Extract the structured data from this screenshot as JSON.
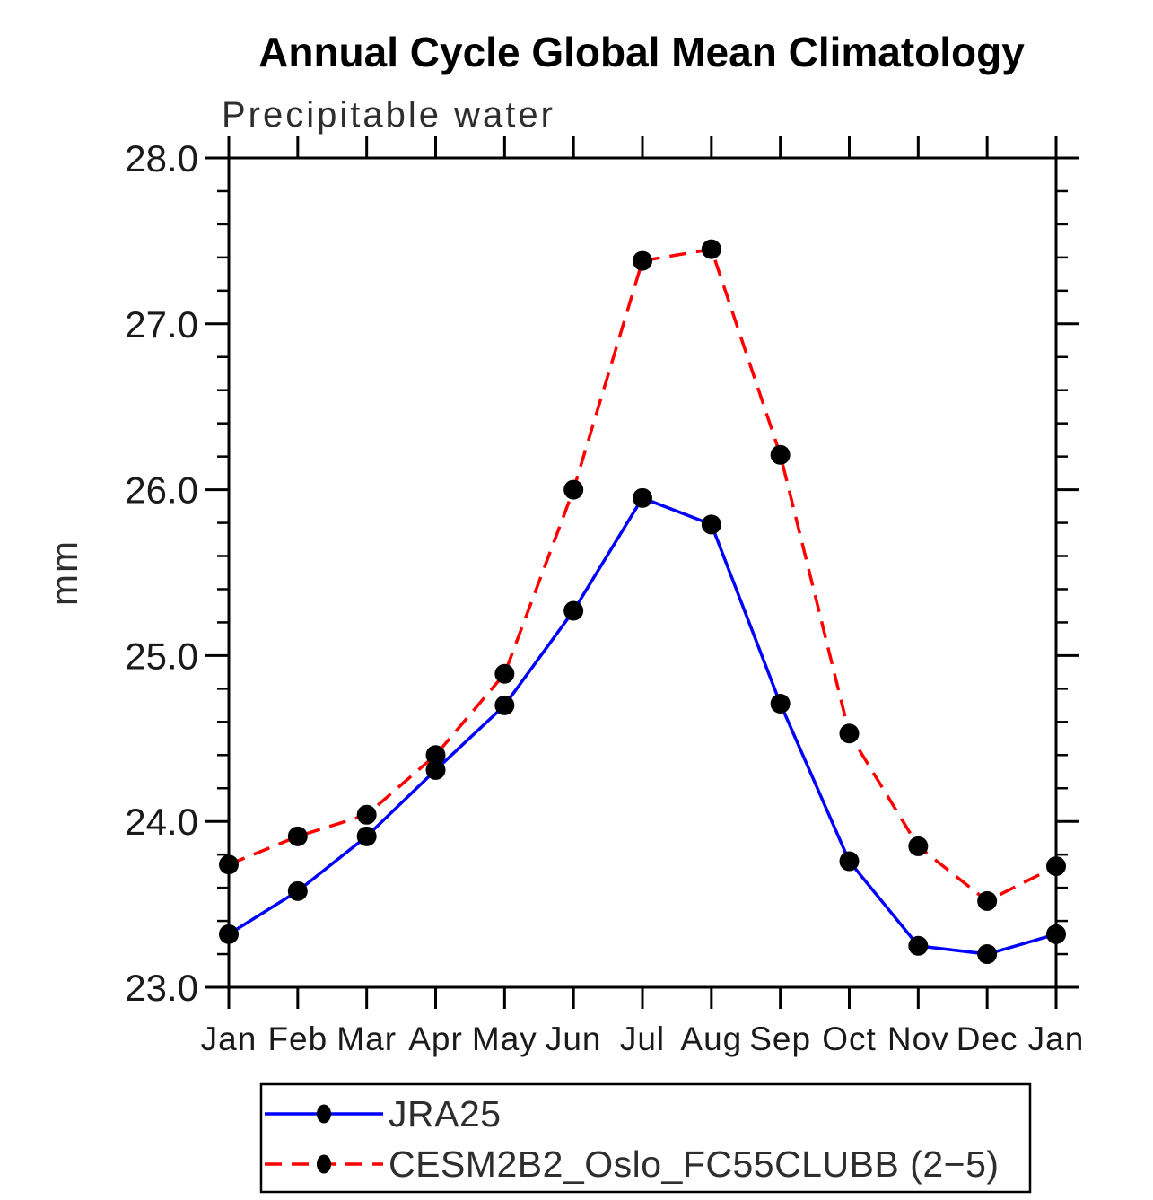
{
  "chart_data": {
    "type": "line",
    "title": "Annual Cycle Global Mean Climatology",
    "subtitle": "Precipitable water",
    "ylabel": "mm",
    "xlabel": "",
    "categories": [
      "Jan",
      "Feb",
      "Mar",
      "Apr",
      "May",
      "Jun",
      "Jul",
      "Aug",
      "Sep",
      "Oct",
      "Nov",
      "Dec",
      "Jan"
    ],
    "ylim": [
      23.0,
      28.0
    ],
    "ytick_major": [
      23.0,
      24.0,
      25.0,
      26.0,
      27.0,
      28.0
    ],
    "ytick_labels": [
      "23.0",
      "24.0",
      "25.0",
      "26.0",
      "27.0",
      "28.0"
    ],
    "ytick_minor_step": 0.2,
    "grid": false,
    "legend_position": "bottom-left",
    "axis_color": "#000000",
    "series": [
      {
        "name": "JRA25",
        "color": "#0000ff",
        "style": "solid",
        "marker": "circle",
        "marker_color": "#000000",
        "values": [
          23.32,
          23.58,
          23.91,
          24.31,
          24.7,
          25.27,
          25.95,
          25.79,
          24.71,
          23.76,
          23.25,
          23.2,
          23.32
        ]
      },
      {
        "name": "CESM2B2_Oslo_FC55CLUBB (2−5)",
        "color": "#ff0000",
        "style": "dashed",
        "marker": "circle",
        "marker_color": "#000000",
        "values": [
          23.74,
          23.91,
          24.04,
          24.4,
          24.89,
          26.0,
          27.38,
          27.45,
          26.21,
          24.53,
          23.85,
          23.52,
          23.73
        ]
      }
    ]
  }
}
